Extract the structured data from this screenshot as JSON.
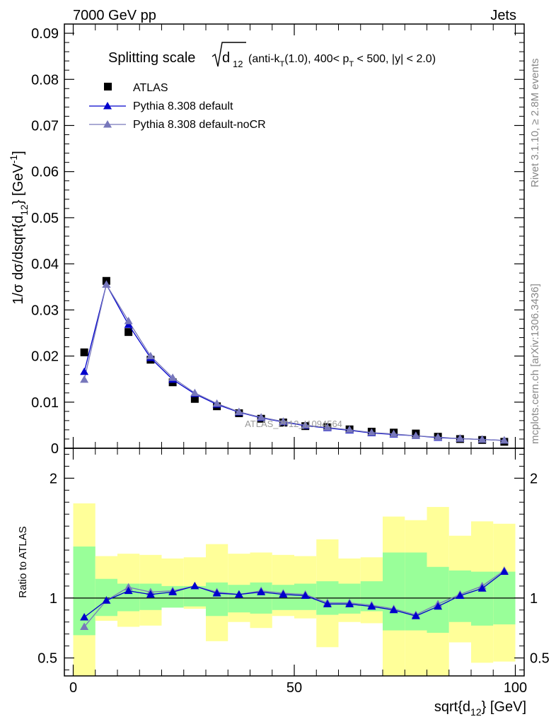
{
  "header": {
    "left": "7000 GeV pp",
    "right": "Jets"
  },
  "side_labels": {
    "rivet": "Rivet 3.1.10, ≥ 2.8M events",
    "mcplots": "mcplots.cern.ch [arXiv:1306.3436]"
  },
  "watermark": "ATLAS_2012_I1094564",
  "title_parts": {
    "prefix": "Splitting scale",
    "d": "d",
    "d_sub": "12",
    "p1": " (anti-k",
    "p1_sub": "T",
    "p2": "(1.0), 400< p",
    "p2_sub": "T",
    "p3": " < 500, |y| < 2.0)"
  },
  "ylabel_main": "1/σ dσ/dsqrt{d_12} [GeV^-1]",
  "ylabel_parts": {
    "a": "1/σ dσ/dsqrt{d",
    "sub": "12",
    "b": "} [GeV",
    "sup": "-1",
    "c": "]"
  },
  "ylabel_ratio": "Ratio to ATLAS",
  "xlabel_parts": {
    "a": "sqrt{d",
    "sub": "12",
    "b": "} [GeV]"
  },
  "legend": [
    {
      "label": "ATLAS",
      "marker": "square",
      "color": "#000000"
    },
    {
      "label": "Pythia 8.308 default",
      "marker": "triangle",
      "color": "#0000cc"
    },
    {
      "label": "Pythia 8.308 default-noCR",
      "marker": "triangle",
      "color": "#7777bb"
    }
  ],
  "chart_data": {
    "type": "scatter",
    "x": [
      2.5,
      7.5,
      12.5,
      17.5,
      22.5,
      27.5,
      32.5,
      37.5,
      42.5,
      47.5,
      52.5,
      57.5,
      62.5,
      67.5,
      72.5,
      77.5,
      82.5,
      87.5,
      92.5,
      97.5
    ],
    "xlim": [
      -2,
      102
    ],
    "x_ticks": [
      0,
      50,
      100
    ],
    "main_ylim": [
      0,
      0.092
    ],
    "main_y_ticks": [
      0,
      0.01,
      0.02,
      0.03,
      0.04,
      0.05,
      0.06,
      0.07,
      0.08,
      0.09
    ],
    "main_y_tick_labels": [
      "0",
      "0.01",
      "0.02",
      "0.03",
      "0.04",
      "0.05",
      "0.06",
      "0.07",
      "0.08",
      "0.09"
    ],
    "ratio_ylim": [
      0.35,
      2.25
    ],
    "ratio_y_ticks": [
      0.5,
      1,
      2
    ],
    "ratio_y_tick_labels": [
      "0.5",
      "1",
      "2"
    ],
    "series": [
      {
        "name": "ATLAS",
        "values": [
          0.0208,
          0.0363,
          0.0252,
          0.0192,
          0.0143,
          0.0107,
          0.0091,
          0.0076,
          0.0064,
          0.0056,
          0.0048,
          0.0046,
          0.0041,
          0.0036,
          0.0034,
          0.0032,
          0.0025,
          0.002,
          0.0018,
          0.0014
        ]
      },
      {
        "name": "Pythia 8.308 default",
        "values": [
          0.0166,
          0.0355,
          0.0268,
          0.0196,
          0.0149,
          0.0118,
          0.0095,
          0.0078,
          0.0066,
          0.0057,
          0.0049,
          0.0044,
          0.0039,
          0.0033,
          0.003,
          0.0027,
          0.0023,
          0.0021,
          0.0019,
          0.0017
        ]
      },
      {
        "name": "Pythia 8.308 default-noCR",
        "values": [
          0.0149,
          0.0355,
          0.0276,
          0.02,
          0.0153,
          0.012,
          0.0097,
          0.0079,
          0.0067,
          0.0058,
          0.005,
          0.0045,
          0.004,
          0.0034,
          0.0031,
          0.0027,
          0.0024,
          0.0021,
          0.0019,
          0.0017
        ]
      }
    ],
    "ratio_series": [
      {
        "name": "Pythia 8.308 default",
        "values": [
          0.84,
          0.98,
          1.06,
          1.03,
          1.05,
          1.1,
          1.04,
          1.03,
          1.05,
          1.03,
          1.02,
          0.95,
          0.95,
          0.93,
          0.9,
          0.85,
          0.93,
          1.02,
          1.08,
          1.22
        ]
      },
      {
        "name": "Pythia 8.308 default-noCR",
        "values": [
          0.76,
          0.98,
          1.09,
          1.05,
          1.06,
          1.1,
          1.05,
          1.03,
          1.06,
          1.04,
          1.03,
          0.96,
          0.96,
          0.94,
          0.91,
          0.86,
          0.95,
          1.03,
          1.1,
          1.23
        ]
      }
    ],
    "ratio_bands": {
      "inner_low": [
        0.69,
        0.85,
        0.89,
        0.9,
        0.92,
        0.93,
        0.85,
        0.88,
        0.87,
        0.9,
        0.9,
        0.86,
        0.87,
        0.89,
        0.73,
        0.73,
        0.71,
        0.8,
        0.77,
        0.78
      ],
      "inner_high": [
        1.43,
        1.16,
        1.12,
        1.12,
        1.1,
        1.1,
        1.13,
        1.11,
        1.13,
        1.11,
        1.12,
        1.14,
        1.12,
        1.14,
        1.38,
        1.38,
        1.26,
        1.23,
        1.22,
        1.22
      ],
      "outer_low": [
        0.35,
        0.81,
        0.76,
        0.77,
        0.93,
        0.91,
        0.64,
        0.8,
        0.75,
        0.85,
        0.83,
        0.59,
        0.8,
        0.79,
        0.35,
        0.35,
        0.35,
        0.63,
        0.46,
        0.47
      ],
      "outer_high": [
        1.79,
        1.35,
        1.37,
        1.36,
        1.33,
        1.34,
        1.45,
        1.37,
        1.38,
        1.36,
        1.35,
        1.49,
        1.33,
        1.34,
        1.68,
        1.65,
        1.76,
        1.52,
        1.64,
        1.62
      ]
    },
    "colors": {
      "inner_band": "#99ff99",
      "outer_band": "#ffff99",
      "atlas": "#000000",
      "default": "#0000cc",
      "nocr": "#7777bb"
    }
  }
}
